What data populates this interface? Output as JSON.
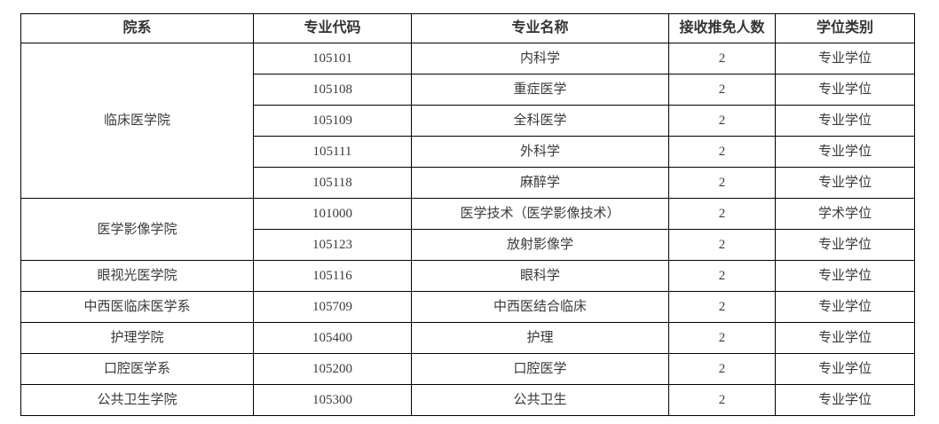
{
  "table": {
    "headers": [
      "院系",
      "专业代码",
      "专业名称",
      "接收推免人数",
      "学位类别"
    ],
    "groups": [
      {
        "department": "临床医学院",
        "rows": [
          {
            "code": "105101",
            "major": "内科学",
            "quota": "2",
            "degree": "专业学位"
          },
          {
            "code": "105108",
            "major": "重症医学",
            "quota": "2",
            "degree": "专业学位"
          },
          {
            "code": "105109",
            "major": "全科医学",
            "quota": "2",
            "degree": "专业学位"
          },
          {
            "code": "105111",
            "major": "外科学",
            "quota": "2",
            "degree": "专业学位"
          },
          {
            "code": "105118",
            "major": "麻醉学",
            "quota": "2",
            "degree": "专业学位"
          }
        ]
      },
      {
        "department": "医学影像学院",
        "rows": [
          {
            "code": "101000",
            "major": "医学技术（医学影像技术）",
            "quota": "2",
            "degree": "学术学位"
          },
          {
            "code": "105123",
            "major": "放射影像学",
            "quota": "2",
            "degree": "专业学位"
          }
        ]
      },
      {
        "department": "眼视光医学院",
        "rows": [
          {
            "code": "105116",
            "major": "眼科学",
            "quota": "2",
            "degree": "专业学位"
          }
        ]
      },
      {
        "department": "中西医临床医学系",
        "rows": [
          {
            "code": "105709",
            "major": "中西医结合临床",
            "quota": "2",
            "degree": "专业学位"
          }
        ]
      },
      {
        "department": "护理学院",
        "rows": [
          {
            "code": "105400",
            "major": "护理",
            "quota": "2",
            "degree": "专业学位"
          }
        ]
      },
      {
        "department": "口腔医学系",
        "rows": [
          {
            "code": "105200",
            "major": "口腔医学",
            "quota": "2",
            "degree": "专业学位"
          }
        ]
      },
      {
        "department": "公共卫生学院",
        "rows": [
          {
            "code": "105300",
            "major": "公共卫生",
            "quota": "2",
            "degree": "专业学位"
          }
        ]
      }
    ]
  },
  "colors": {
    "border": "#000000",
    "text": "#3a3a3a"
  }
}
